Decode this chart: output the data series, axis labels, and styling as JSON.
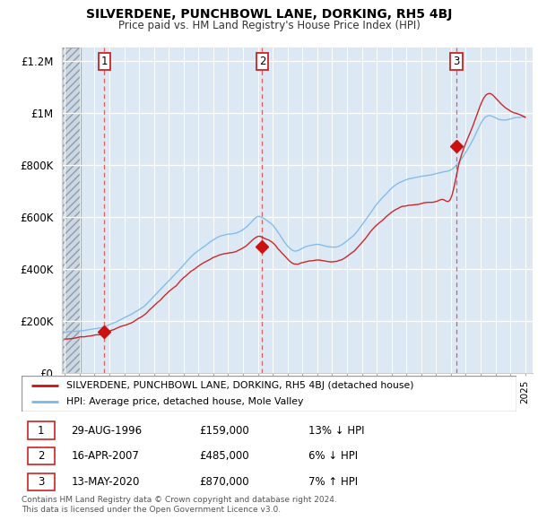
{
  "title": "SILVERDENE, PUNCHBOWL LANE, DORKING, RH5 4BJ",
  "subtitle": "Price paid vs. HM Land Registry's House Price Index (HPI)",
  "sale1_date": 1996.66,
  "sale1_price": 159000,
  "sale1_label": "1",
  "sale2_date": 2007.29,
  "sale2_price": 485000,
  "sale2_label": "2",
  "sale3_date": 2020.37,
  "sale3_price": 870000,
  "sale3_label": "3",
  "xmin": 1993.8,
  "xmax": 2025.5,
  "ymin": 0,
  "ymax": 1250000,
  "yticks": [
    0,
    200000,
    400000,
    600000,
    800000,
    1000000,
    1200000
  ],
  "ytick_labels": [
    "£0",
    "£200K",
    "£400K",
    "£600K",
    "£800K",
    "£1M",
    "£1.2M"
  ],
  "hpi_color": "#7bb8e8",
  "price_color": "#cc1111",
  "legend_price_label": "SILVERDENE, PUNCHBOWL LANE, DORKING, RH5 4BJ (detached house)",
  "legend_hpi_label": "HPI: Average price, detached house, Mole Valley",
  "table_rows": [
    {
      "num": "1",
      "date": "29-AUG-1996",
      "price": "£159,000",
      "hpi": "13% ↓ HPI"
    },
    {
      "num": "2",
      "date": "16-APR-2007",
      "price": "£485,000",
      "hpi": "6% ↓ HPI"
    },
    {
      "num": "3",
      "date": "13-MAY-2020",
      "price": "£870,000",
      "hpi": "7% ↑ HPI"
    }
  ],
  "footer": "Contains HM Land Registry data © Crown copyright and database right 2024.\nThis data is licensed under the Open Government Licence v3.0.",
  "hpi_anchors_years": [
    1994.0,
    1994.5,
    1995.0,
    1995.5,
    1996.0,
    1996.5,
    1997.0,
    1997.5,
    1998.0,
    1998.5,
    1999.0,
    1999.5,
    2000.0,
    2000.5,
    2001.0,
    2001.5,
    2002.0,
    2002.5,
    2003.0,
    2003.5,
    2004.0,
    2004.5,
    2005.0,
    2005.5,
    2006.0,
    2006.5,
    2007.0,
    2007.5,
    2008.0,
    2008.5,
    2009.0,
    2009.5,
    2010.0,
    2010.5,
    2011.0,
    2011.5,
    2012.0,
    2012.5,
    2013.0,
    2013.5,
    2014.0,
    2014.5,
    2015.0,
    2015.5,
    2016.0,
    2016.5,
    2017.0,
    2017.5,
    2018.0,
    2018.5,
    2019.0,
    2019.5,
    2020.0,
    2020.5,
    2021.0,
    2021.5,
    2022.0,
    2022.5,
    2023.0,
    2023.5,
    2024.0,
    2024.5,
    2025.0
  ],
  "hpi_anchors_vals": [
    155000,
    160000,
    163000,
    168000,
    172000,
    177000,
    188000,
    200000,
    215000,
    228000,
    245000,
    265000,
    295000,
    325000,
    355000,
    385000,
    415000,
    445000,
    470000,
    490000,
    510000,
    525000,
    530000,
    535000,
    550000,
    575000,
    600000,
    590000,
    570000,
    530000,
    490000,
    470000,
    480000,
    490000,
    495000,
    490000,
    485000,
    490000,
    510000,
    535000,
    570000,
    610000,
    650000,
    680000,
    710000,
    730000,
    740000,
    745000,
    750000,
    755000,
    760000,
    768000,
    775000,
    800000,
    840000,
    890000,
    950000,
    980000,
    970000,
    960000,
    965000,
    970000,
    975000
  ],
  "price_anchors_years": [
    1994.0,
    1994.5,
    1995.0,
    1995.5,
    1996.0,
    1996.5,
    1997.0,
    1997.5,
    1998.0,
    1998.5,
    1999.0,
    1999.5,
    2000.0,
    2000.5,
    2001.0,
    2001.5,
    2002.0,
    2002.5,
    2003.0,
    2003.5,
    2004.0,
    2004.5,
    2005.0,
    2005.5,
    2006.0,
    2006.5,
    2007.0,
    2007.5,
    2008.0,
    2008.5,
    2009.0,
    2009.5,
    2010.0,
    2010.5,
    2011.0,
    2011.5,
    2012.0,
    2012.5,
    2013.0,
    2013.5,
    2014.0,
    2014.5,
    2015.0,
    2015.5,
    2016.0,
    2016.5,
    2017.0,
    2017.5,
    2018.0,
    2018.5,
    2019.0,
    2019.5,
    2020.0,
    2020.5,
    2021.0,
    2021.5,
    2022.0,
    2022.5,
    2023.0,
    2023.5,
    2024.0,
    2024.5,
    2025.0
  ],
  "price_anchors_vals": [
    130000,
    133000,
    136000,
    140000,
    144000,
    148000,
    159000,
    170000,
    183000,
    195000,
    210000,
    228000,
    255000,
    278000,
    305000,
    328000,
    355000,
    378000,
    400000,
    418000,
    435000,
    448000,
    452000,
    456000,
    468000,
    490000,
    510000,
    500000,
    484000,
    450000,
    420000,
    402000,
    410000,
    417000,
    420000,
    416000,
    413000,
    418000,
    434000,
    455000,
    485000,
    519000,
    553000,
    578000,
    603000,
    620000,
    629000,
    633000,
    638000,
    643000,
    646000,
    653000,
    659000,
    780000,
    870000,
    940000,
    1020000,
    1060000,
    1040000,
    1010000,
    990000,
    980000,
    970000
  ]
}
